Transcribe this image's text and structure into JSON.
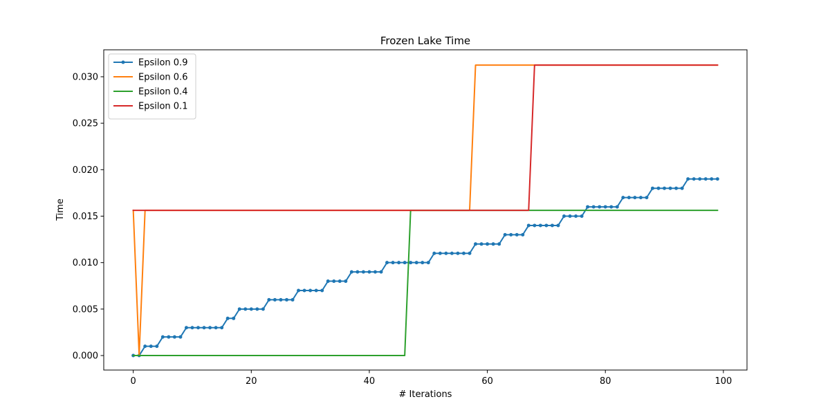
{
  "chart_data": {
    "type": "line",
    "title": "Frozen Lake  Time",
    "xlabel": "# Iterations",
    "ylabel": "Time",
    "xlim": [
      -5,
      104
    ],
    "ylim": [
      -0.00156,
      0.0329
    ],
    "xticks": [
      0,
      20,
      40,
      60,
      80,
      100
    ],
    "yticks": [
      0.0,
      0.005,
      0.01,
      0.015,
      0.02,
      0.025,
      0.03
    ],
    "ytick_labels": [
      "0.000",
      "0.005",
      "0.010",
      "0.015",
      "0.020",
      "0.025",
      "0.030"
    ],
    "xtick_labels": [
      "0",
      "20",
      "40",
      "60",
      "80",
      "100"
    ],
    "grid": false,
    "legend_position": "top-left",
    "series": [
      {
        "name": "Epsilon 0.9",
        "color": "#1f77b4",
        "markers": true,
        "points": [
          [
            0,
            0.0
          ],
          [
            1,
            0.0
          ],
          [
            2,
            0.001
          ],
          [
            3,
            0.001
          ],
          [
            4,
            0.001
          ],
          [
            5,
            0.002
          ],
          [
            6,
            0.002
          ],
          [
            7,
            0.002
          ],
          [
            8,
            0.002
          ],
          [
            9,
            0.003
          ],
          [
            10,
            0.003
          ],
          [
            11,
            0.003
          ],
          [
            12,
            0.003
          ],
          [
            13,
            0.003
          ],
          [
            14,
            0.003
          ],
          [
            15,
            0.003
          ],
          [
            16,
            0.004
          ],
          [
            17,
            0.004
          ],
          [
            18,
            0.005
          ],
          [
            19,
            0.005
          ],
          [
            20,
            0.005
          ],
          [
            21,
            0.005
          ],
          [
            22,
            0.005
          ],
          [
            23,
            0.006
          ],
          [
            24,
            0.006
          ],
          [
            25,
            0.006
          ],
          [
            26,
            0.006
          ],
          [
            27,
            0.006
          ],
          [
            28,
            0.007
          ],
          [
            29,
            0.007
          ],
          [
            30,
            0.007
          ],
          [
            31,
            0.007
          ],
          [
            32,
            0.007
          ],
          [
            33,
            0.008
          ],
          [
            34,
            0.008
          ],
          [
            35,
            0.008
          ],
          [
            36,
            0.008
          ],
          [
            37,
            0.009
          ],
          [
            38,
            0.009
          ],
          [
            39,
            0.009
          ],
          [
            40,
            0.009
          ],
          [
            41,
            0.009
          ],
          [
            42,
            0.009
          ],
          [
            43,
            0.01
          ],
          [
            44,
            0.01
          ],
          [
            45,
            0.01
          ],
          [
            46,
            0.01
          ],
          [
            47,
            0.01
          ],
          [
            48,
            0.01
          ],
          [
            49,
            0.01
          ],
          [
            50,
            0.01
          ],
          [
            51,
            0.011
          ],
          [
            52,
            0.011
          ],
          [
            53,
            0.011
          ],
          [
            54,
            0.011
          ],
          [
            55,
            0.011
          ],
          [
            56,
            0.011
          ],
          [
            57,
            0.011
          ],
          [
            58,
            0.012
          ],
          [
            59,
            0.012
          ],
          [
            60,
            0.012
          ],
          [
            61,
            0.012
          ],
          [
            62,
            0.012
          ],
          [
            63,
            0.013
          ],
          [
            64,
            0.013
          ],
          [
            65,
            0.013
          ],
          [
            66,
            0.013
          ],
          [
            67,
            0.014
          ],
          [
            68,
            0.014
          ],
          [
            69,
            0.014
          ],
          [
            70,
            0.014
          ],
          [
            71,
            0.014
          ],
          [
            72,
            0.014
          ],
          [
            73,
            0.015
          ],
          [
            74,
            0.015
          ],
          [
            75,
            0.015
          ],
          [
            76,
            0.015
          ],
          [
            77,
            0.016
          ],
          [
            78,
            0.016
          ],
          [
            79,
            0.016
          ],
          [
            80,
            0.016
          ],
          [
            81,
            0.016
          ],
          [
            82,
            0.016
          ],
          [
            83,
            0.017
          ],
          [
            84,
            0.017
          ],
          [
            85,
            0.017
          ],
          [
            86,
            0.017
          ],
          [
            87,
            0.017
          ],
          [
            88,
            0.018
          ],
          [
            89,
            0.018
          ],
          [
            90,
            0.018
          ],
          [
            91,
            0.018
          ],
          [
            92,
            0.018
          ],
          [
            93,
            0.018
          ],
          [
            94,
            0.019
          ],
          [
            95,
            0.019
          ],
          [
            96,
            0.019
          ],
          [
            97,
            0.019
          ],
          [
            98,
            0.019
          ],
          [
            99,
            0.019
          ]
        ]
      },
      {
        "name": "Epsilon 0.6",
        "color": "#ff7f0e",
        "markers": false,
        "points": [
          [
            0,
            0.015625
          ],
          [
            1,
            0.0
          ],
          [
            2,
            0.015625
          ],
          [
            57,
            0.015625
          ],
          [
            58,
            0.03125
          ],
          [
            99,
            0.03125
          ]
        ]
      },
      {
        "name": "Epsilon 0.4",
        "color": "#2ca02c",
        "markers": false,
        "points": [
          [
            0,
            0.0
          ],
          [
            46,
            0.0
          ],
          [
            47,
            0.015625
          ],
          [
            99,
            0.015625
          ]
        ]
      },
      {
        "name": "Epsilon 0.1",
        "color": "#d62728",
        "markers": false,
        "points": [
          [
            0,
            0.015625
          ],
          [
            67,
            0.015625
          ],
          [
            68,
            0.03125
          ],
          [
            99,
            0.03125
          ]
        ]
      }
    ]
  }
}
